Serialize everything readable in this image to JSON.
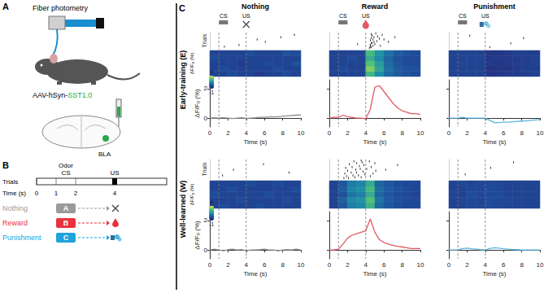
{
  "panel_A": {
    "label": "A",
    "title": "Fiber photometry",
    "virus_parts": [
      "AAV-hSyn-",
      "SST1.0"
    ],
    "region": "BLA"
  },
  "panel_B": {
    "label": "B",
    "row_label": "Trials",
    "odor_label": "Odor",
    "cs_label": "CS",
    "us_label": "US",
    "time_label": "Time (s)",
    "time_ticks": [
      0,
      1,
      2,
      4
    ],
    "cs_window": [
      1,
      2
    ],
    "us_time": 4,
    "trial_types": [
      {
        "name": "Nothing",
        "odor": "A",
        "color": "#9a9a9a"
      },
      {
        "name": "Reward",
        "odor": "B",
        "color": "#e8323c"
      },
      {
        "name": "Punishment",
        "odor": "C",
        "color": "#1fa3dc"
      }
    ]
  },
  "panel_C": {
    "label": "C",
    "cs_label": "CS",
    "us_label": "US",
    "cs_window": [
      1,
      2
    ],
    "us_time": 4,
    "event_lines": [
      1,
      4
    ],
    "raster_label": "Trials",
    "raster_ylim": [
      0,
      21
    ],
    "colorbar": {
      "range": [
        -1,
        4
      ],
      "ticks": [
        4,
        -1
      ],
      "label": "ΔF/F₀ (%)"
    },
    "x_label": "Time (s)",
    "xlim": [
      0,
      10
    ],
    "xticks": [
      0,
      2,
      4,
      6,
      8,
      10
    ],
    "y_label": "ΔF/F₀ (%)",
    "ylim": [
      -0.6,
      2.6
    ],
    "yticks": [
      0,
      2
    ]
  },
  "chart_data": [
    {
      "type": "line",
      "condition": "Nothing",
      "stage": "Early-training (E)",
      "color": "#8c8c8c",
      "x": [
        0,
        0.5,
        1,
        1.5,
        2,
        2.5,
        3,
        3.5,
        4,
        4.5,
        5,
        5.5,
        6,
        6.5,
        7,
        7.5,
        8,
        8.5,
        9,
        9.5,
        10
      ],
      "values": [
        0,
        0.02,
        0,
        0.03,
        0,
        -0.03,
        0,
        0.02,
        -0.02,
        0,
        0.02,
        0.05,
        0.05,
        0.08,
        0.08,
        0.1,
        0.12,
        0.15,
        0.18,
        0.2,
        0.22
      ],
      "heatmap": {
        "x": [
          0.5,
          1.5,
          2.5,
          3.5,
          4.5,
          5.5,
          6.5,
          7.5,
          8.5,
          9.5
        ],
        "rows": [
          [
            0,
            0,
            0.2,
            0,
            0,
            -0.2,
            0,
            0,
            0.2,
            0
          ],
          [
            0,
            0.2,
            0,
            0,
            0,
            0,
            0,
            0.2,
            0,
            0
          ],
          [
            0,
            0,
            0,
            -0.2,
            0,
            0,
            0.2,
            0,
            0,
            0.3
          ],
          [
            0.2,
            0,
            0,
            0,
            0,
            0,
            0,
            0,
            0,
            0
          ],
          [
            0,
            0,
            0,
            0,
            0.2,
            0,
            0,
            0,
            0.3,
            0.2
          ]
        ]
      },
      "raster": {
        "points": [
          [
            1.6,
            18
          ],
          [
            3.2,
            16
          ],
          [
            6.1,
            12
          ],
          [
            7.8,
            6
          ],
          [
            9.3,
            3
          ],
          [
            5.2,
            9
          ]
        ]
      }
    },
    {
      "type": "line",
      "condition": "Reward",
      "stage": "Early-training (E)",
      "color": "#e05a64",
      "tick_labels": "x",
      "x": [
        0,
        0.5,
        1,
        1.5,
        2,
        2.5,
        3,
        3.5,
        4,
        4.5,
        5,
        5.5,
        6,
        6.5,
        7,
        7.5,
        8,
        8.5,
        9,
        9.5,
        10
      ],
      "values": [
        0,
        0.05,
        0.05,
        0.2,
        0.1,
        0.05,
        0,
        0,
        -0.05,
        0.6,
        2.1,
        2.2,
        1.8,
        1.4,
        1.0,
        0.7,
        0.5,
        0.4,
        0.3,
        0.3,
        0.25
      ],
      "heatmap": {
        "x": [
          0.5,
          1.5,
          2.5,
          3.5,
          4.5,
          5.5,
          6.5,
          7.5,
          8.5,
          9.5
        ],
        "rows": [
          [
            0,
            0,
            0,
            0,
            2.5,
            1.5,
            0.8,
            0.5,
            0.3,
            0.2
          ],
          [
            0,
            0.2,
            0,
            0,
            3.2,
            2,
            1,
            0.5,
            0.3,
            0.3
          ],
          [
            0,
            0,
            0,
            0,
            2.8,
            1.8,
            0.8,
            0.4,
            0.2,
            0.2
          ],
          [
            0,
            0,
            0.2,
            0,
            2.2,
            1.4,
            0.7,
            0.3,
            0.2,
            0.1
          ],
          [
            0,
            0,
            0,
            0,
            2.6,
            1.6,
            0.9,
            0.5,
            0.3,
            0.2
          ]
        ]
      },
      "raster": {
        "points": [
          [
            4.4,
            20
          ],
          [
            4.6,
            19
          ],
          [
            4.5,
            18
          ],
          [
            4.8,
            17
          ],
          [
            4.5,
            16
          ],
          [
            5.0,
            15
          ],
          [
            4.6,
            14
          ],
          [
            4.7,
            13
          ],
          [
            4.9,
            12
          ],
          [
            5.2,
            11
          ],
          [
            4.5,
            10
          ],
          [
            4.8,
            9
          ],
          [
            5.5,
            8
          ],
          [
            4.6,
            7
          ],
          [
            4.9,
            6
          ],
          [
            5.3,
            5
          ],
          [
            4.7,
            4
          ],
          [
            5.8,
            3
          ],
          [
            4.6,
            2
          ],
          [
            5.1,
            1
          ],
          [
            3.1,
            15
          ],
          [
            6.5,
            12
          ],
          [
            7.2,
            6
          ],
          [
            5.6,
            17
          ],
          [
            6.0,
            9
          ]
        ]
      }
    },
    {
      "type": "line",
      "condition": "Punishment",
      "stage": "Early-training (E)",
      "color": "#5ab4e0",
      "tick_labels": "x",
      "x": [
        0,
        0.5,
        1,
        1.5,
        2,
        2.5,
        3,
        3.5,
        4,
        4.5,
        5,
        5.5,
        6,
        6.5,
        7,
        7.5,
        8,
        8.5,
        9,
        9.5,
        10
      ],
      "values": [
        0,
        0,
        0,
        0.05,
        0,
        0,
        0,
        0,
        0,
        -0.15,
        -0.3,
        -0.3,
        -0.28,
        -0.28,
        -0.25,
        -0.22,
        -0.2,
        -0.18,
        -0.15,
        -0.12,
        -0.1
      ],
      "heatmap": {
        "x": [
          0.5,
          1.5,
          2.5,
          3.5,
          4.5,
          5.5,
          6.5,
          7.5,
          8.5,
          9.5
        ],
        "rows": [
          [
            0,
            0,
            0,
            0,
            -0.3,
            -0.3,
            -0.2,
            -0.2,
            -0.1,
            0
          ],
          [
            0,
            0,
            0,
            0,
            -0.4,
            -0.3,
            -0.3,
            -0.2,
            -0.1,
            -0.1
          ],
          [
            0,
            0.1,
            0,
            0,
            -0.2,
            -0.3,
            -0.2,
            -0.1,
            -0.1,
            0
          ],
          [
            0,
            0,
            0,
            0,
            -0.3,
            -0.2,
            -0.2,
            -0.2,
            -0.1,
            0
          ],
          [
            0,
            0,
            0,
            0,
            -0.3,
            -0.3,
            -0.2,
            -0.1,
            -0.1,
            -0.1
          ]
        ]
      },
      "raster": {
        "points": [
          [
            4.5,
            19
          ],
          [
            6.8,
            14
          ],
          [
            8.2,
            7
          ],
          [
            2.3,
            4
          ]
        ]
      }
    },
    {
      "type": "line",
      "condition": "Nothing",
      "stage": "Well-learned (W)",
      "color": "#8c8c8c",
      "x": [
        0,
        0.5,
        1,
        1.5,
        2,
        2.5,
        3,
        3.5,
        4,
        4.5,
        5,
        5.5,
        6,
        6.5,
        7,
        7.5,
        8,
        8.5,
        9,
        9.5,
        10
      ],
      "values": [
        0,
        0.05,
        0,
        -0.05,
        0.02,
        0.05,
        0,
        0.03,
        -0.05,
        0,
        0,
        0.02,
        0.05,
        0,
        0,
        -0.05,
        0,
        0.02,
        0,
        0.05,
        0
      ],
      "heatmap": {
        "x": [
          0.5,
          1.5,
          2.5,
          3.5,
          4.5,
          5.5,
          6.5,
          7.5,
          8.5,
          9.5
        ],
        "rows": [
          [
            0,
            0.2,
            0,
            0,
            0,
            0.2,
            0,
            0,
            0,
            0
          ],
          [
            0,
            0,
            0,
            0.2,
            0,
            0,
            0,
            0,
            0.2,
            0
          ],
          [
            0.2,
            0,
            0,
            0,
            0,
            0,
            0.2,
            0,
            0,
            0
          ],
          [
            0,
            0,
            0.2,
            0,
            0,
            0,
            0,
            0,
            0,
            0.2
          ],
          [
            0,
            0,
            0,
            0,
            0.2,
            0,
            0,
            0.2,
            0,
            0
          ]
        ]
      },
      "raster": {
        "points": [
          [
            1.4,
            17
          ],
          [
            2.6,
            11
          ],
          [
            5.9,
            5
          ],
          [
            8.7,
            14
          ]
        ]
      }
    },
    {
      "type": "line",
      "condition": "Reward",
      "stage": "Well-learned (W)",
      "color": "#e05a64",
      "tick_labels": "x",
      "x": [
        0,
        0.5,
        1,
        1.5,
        2,
        2.5,
        3,
        3.5,
        4,
        4.5,
        5,
        5.5,
        6,
        6.5,
        7,
        7.5,
        8,
        8.5,
        9,
        9.5,
        10
      ],
      "values": [
        0,
        0,
        0.05,
        0.4,
        0.8,
        1.0,
        1.1,
        1.2,
        1.3,
        2.1,
        1.2,
        0.7,
        0.5,
        0.4,
        0.3,
        0.25,
        0.2,
        0.15,
        0.1,
        0.1,
        0.1
      ],
      "heatmap": {
        "x": [
          0.5,
          1.5,
          2.5,
          3.5,
          4.5,
          5.5,
          6.5,
          7.5,
          8.5,
          9.5
        ],
        "rows": [
          [
            0,
            0.4,
            1.2,
            1.4,
            2.4,
            0.8,
            0.4,
            0.2,
            0.1,
            0.1
          ],
          [
            0,
            0.6,
            1.4,
            1.6,
            2.8,
            1,
            0.5,
            0.3,
            0.2,
            0.1
          ],
          [
            0,
            0.3,
            1,
            1.2,
            2.2,
            0.7,
            0.4,
            0.2,
            0.1,
            0
          ],
          [
            0,
            0.5,
            1.3,
            1.5,
            2.6,
            0.9,
            0.5,
            0.3,
            0.2,
            0.1
          ],
          [
            0,
            0.4,
            1.1,
            1.3,
            2.2,
            0.7,
            0.4,
            0.2,
            0.1,
            0.1
          ]
        ]
      },
      "raster": {
        "points": [
          [
            1.6,
            20
          ],
          [
            2.1,
            20
          ],
          [
            2.8,
            19
          ],
          [
            3.5,
            19
          ],
          [
            1.9,
            18
          ],
          [
            2.6,
            17
          ],
          [
            3.2,
            17
          ],
          [
            3.9,
            16
          ],
          [
            1.7,
            15
          ],
          [
            2.4,
            14
          ],
          [
            3.0,
            14
          ],
          [
            3.7,
            13
          ],
          [
            2.0,
            12
          ],
          [
            2.9,
            11
          ],
          [
            3.4,
            10
          ],
          [
            4.1,
            10
          ],
          [
            1.8,
            9
          ],
          [
            2.5,
            8
          ],
          [
            3.3,
            7
          ],
          [
            3.8,
            6
          ],
          [
            2.2,
            5
          ],
          [
            3.0,
            4
          ],
          [
            3.6,
            3
          ],
          [
            2.7,
            2
          ],
          [
            3.5,
            1
          ],
          [
            4.5,
            18
          ],
          [
            4.8,
            15
          ],
          [
            5.1,
            12
          ],
          [
            4.6,
            8
          ],
          [
            5.0,
            4
          ],
          [
            4.4,
            2
          ],
          [
            6.2,
            11
          ],
          [
            7.5,
            6
          ]
        ]
      }
    },
    {
      "type": "line",
      "condition": "Punishment",
      "stage": "Well-learned (W)",
      "color": "#5ab4e0",
      "tick_labels": "x",
      "x": [
        0,
        0.5,
        1,
        1.5,
        2,
        2.5,
        3,
        3.5,
        4,
        4.5,
        5,
        5.5,
        6,
        6.5,
        7,
        7.5,
        8,
        8.5,
        9,
        9.5,
        10
      ],
      "values": [
        0,
        0,
        0,
        0.1,
        0.12,
        0.08,
        0.05,
        0.02,
        0,
        0.1,
        0.15,
        0.12,
        0.08,
        0.05,
        0.03,
        0.02,
        0,
        0,
        0,
        0,
        0
      ],
      "heatmap": {
        "x": [
          0.5,
          1.5,
          2.5,
          3.5,
          4.5,
          5.5,
          6.5,
          7.5,
          8.5,
          9.5
        ],
        "rows": [
          [
            0,
            0,
            0.1,
            0.1,
            0.2,
            0.1,
            0,
            0,
            0,
            0
          ],
          [
            0,
            0.1,
            0.1,
            0,
            0.2,
            0.1,
            0.1,
            0,
            0,
            0
          ],
          [
            0,
            0,
            0.2,
            0.1,
            0.1,
            0.2,
            0,
            0,
            0,
            0
          ],
          [
            0,
            0,
            0.1,
            0.1,
            0.2,
            0.1,
            0,
            0,
            0,
            0
          ],
          [
            0,
            0.1,
            0,
            0.1,
            0.1,
            0.1,
            0,
            0,
            0,
            0
          ]
        ]
      },
      "raster": {
        "points": [
          [
            1.8,
            16
          ],
          [
            4.6,
            9
          ],
          [
            7.1,
            3
          ]
        ]
      }
    }
  ]
}
